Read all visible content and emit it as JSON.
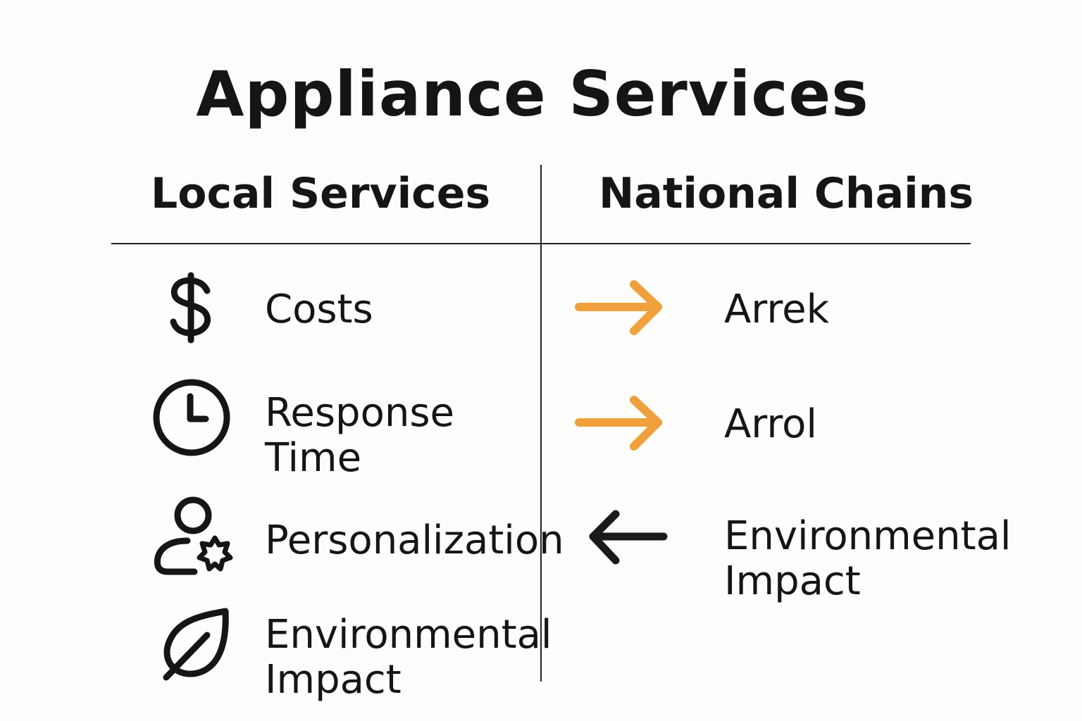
{
  "title": "Appliance Services",
  "columns": {
    "left": {
      "heading": "Local Services",
      "items": [
        {
          "icon": "dollar-icon",
          "label": "Costs"
        },
        {
          "icon": "clock-icon",
          "label": "Response Time"
        },
        {
          "icon": "user-gear-icon",
          "label": "Personalization"
        },
        {
          "icon": "leaf-icon",
          "label": "Environmental Impact"
        }
      ]
    },
    "right": {
      "heading": "National Chains",
      "items": [
        {
          "icon": "arrow-right-icon",
          "color": "#f0a03c",
          "label": "Arrek"
        },
        {
          "icon": "arrow-right-icon",
          "color": "#f0a03c",
          "label": "Arrol"
        },
        {
          "icon": "arrow-left-icon",
          "color": "#1a1a1a",
          "label": "Environmental Impact"
        }
      ]
    }
  }
}
